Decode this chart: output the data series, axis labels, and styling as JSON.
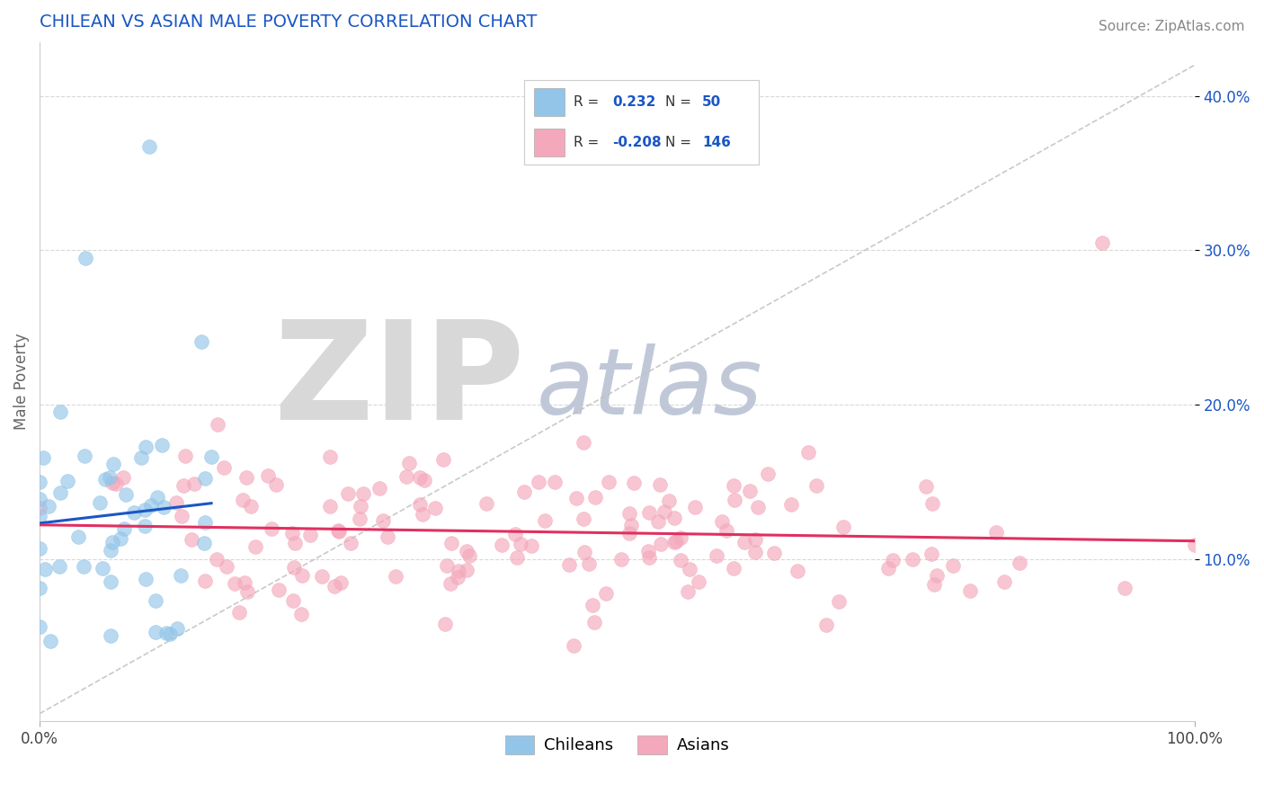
{
  "title": "CHILEAN VS ASIAN MALE POVERTY CORRELATION CHART",
  "source": "Source: ZipAtlas.com",
  "xlabel_start": "0.0%",
  "xlabel_end": "100.0%",
  "ylabel": "Male Poverty",
  "y_ticks": [
    0.1,
    0.2,
    0.3,
    0.4
  ],
  "y_tick_labels": [
    "10.0%",
    "20.0%",
    "30.0%",
    "40.0%"
  ],
  "xlim": [
    0.0,
    1.0
  ],
  "ylim": [
    -0.005,
    0.435
  ],
  "chilean_R": 0.232,
  "chilean_N": 50,
  "asian_R": -0.208,
  "asian_N": 146,
  "chilean_color": "#92c5e8",
  "asian_color": "#f4a8bb",
  "trend_chilean_color": "#1a56c4",
  "trend_asian_color": "#e03060",
  "ref_line_color": "#c0c0c0",
  "grid_color": "#c8c8c8",
  "watermark_zip_color": "#d8d8d8",
  "watermark_atlas_color": "#c0c8d8",
  "background_color": "#ffffff",
  "title_color": "#1a56c4",
  "legend_text_color": "#1a56c4",
  "source_color": "#888888"
}
